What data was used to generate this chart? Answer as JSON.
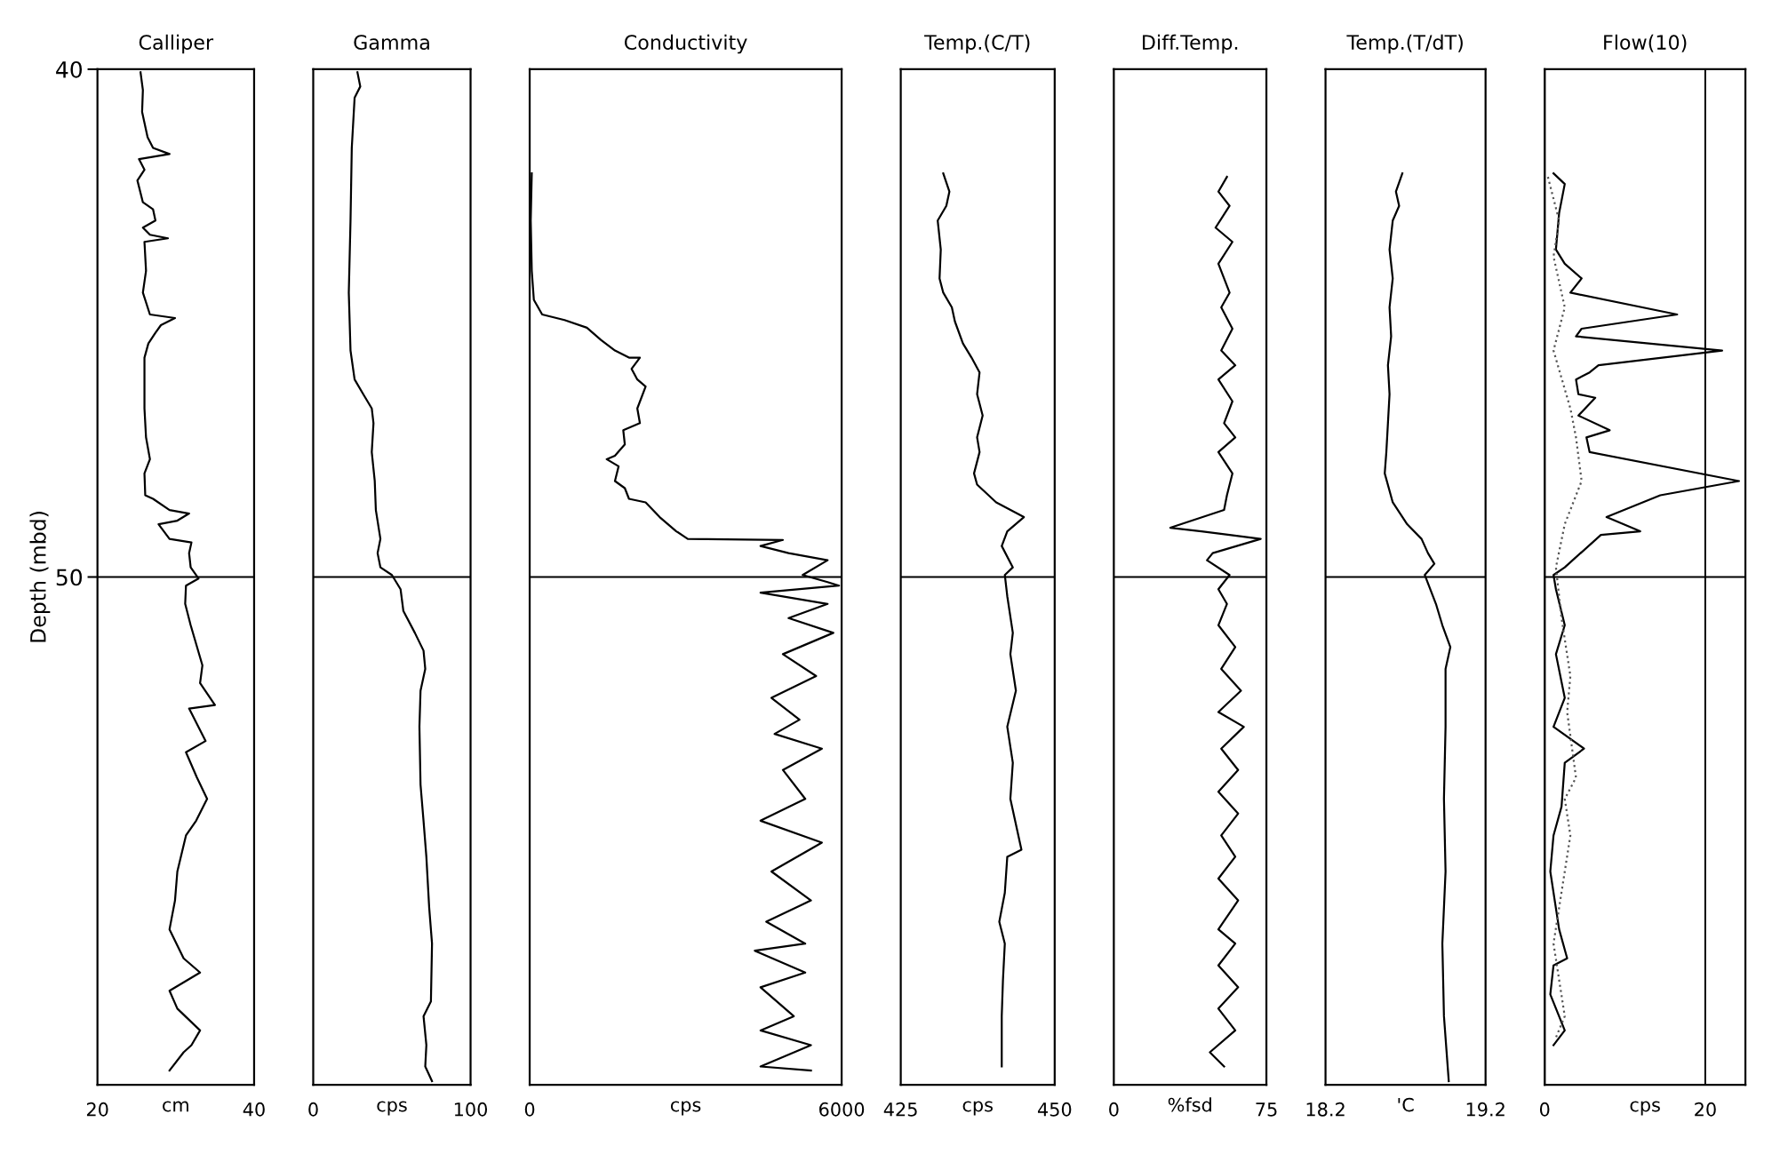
{
  "chart_data": [
    {
      "type": "line",
      "title": "Calliper",
      "xlabel": "cm",
      "ylabel": "Depth (mbd)",
      "xlim": [
        20,
        40
      ],
      "xticks": [
        20,
        40
      ],
      "ylim": [
        60,
        40
      ],
      "yticks": [
        40,
        50
      ],
      "grid": "y",
      "series": [
        {
          "color": "#000000",
          "x": [
            25.5,
            25.8,
            25.7,
            26.4,
            27.1,
            29.2,
            25.3,
            26.0,
            25.1,
            25.8,
            27.1,
            27.4,
            25.8,
            26.7,
            29.0,
            26.0,
            26.2,
            25.8,
            26.7,
            29.9,
            28.1,
            27.4,
            27.1,
            26.5,
            26.0,
            26.0,
            26.0,
            26.2,
            26.7,
            26.0,
            26.1,
            27.1,
            29.2,
            31.7,
            30.2,
            27.8,
            29.2,
            32.0,
            31.7,
            31.9,
            32.9,
            31.3,
            31.2,
            31.9,
            33.4,
            33.1,
            35.0,
            31.7,
            33.8,
            31.3,
            32.7,
            34.0,
            32.6,
            31.3,
            30.2,
            29.9,
            29.2,
            31.0,
            33.1,
            29.2,
            30.2,
            33.1,
            32.0,
            31.0,
            29.2
          ],
          "values": [
            40.06,
            40.41,
            40.84,
            41.34,
            41.55,
            41.67,
            41.77,
            41.98,
            42.19,
            42.62,
            42.76,
            42.98,
            43.12,
            43.26,
            43.33,
            43.4,
            43.97,
            44.4,
            44.83,
            44.9,
            45.04,
            45.19,
            45.26,
            45.4,
            45.68,
            46.11,
            46.68,
            47.25,
            47.68,
            47.96,
            48.39,
            48.46,
            48.68,
            48.75,
            48.89,
            48.96,
            49.25,
            49.32,
            49.53,
            49.81,
            50.03,
            50.17,
            50.53,
            50.95,
            51.74,
            52.09,
            52.52,
            52.59,
            53.23,
            53.45,
            53.95,
            54.37,
            54.8,
            55.09,
            55.8,
            56.37,
            56.94,
            57.51,
            57.79,
            58.15,
            58.5,
            58.93,
            59.22,
            59.36,
            59.72
          ]
        }
      ]
    },
    {
      "type": "line",
      "title": "Gamma",
      "xlabel": "cps",
      "xlim": [
        0,
        100
      ],
      "xticks": [
        0,
        100
      ],
      "ylim": [
        60,
        40
      ],
      "yticks": [
        40,
        50
      ],
      "grid": "y",
      "tick_labels": "x",
      "series": [
        {
          "color": "#000000",
          "x": [
            28.1,
            29.9,
            26.3,
            24.5,
            23.7,
            22.6,
            23.7,
            26.3,
            31.8,
            37.2,
            38.3,
            37.2,
            39.1,
            39.8,
            42.7,
            40.9,
            42.7,
            50.0,
            55.5,
            57.3,
            64.6,
            70.1,
            71.2,
            68.2,
            67.5,
            68.2,
            70.1,
            71.9,
            73.7,
            75.5,
            74.8,
            70.1,
            71.9,
            71.2,
            75.5
          ],
          "values": [
            40.06,
            40.34,
            40.56,
            41.55,
            42.98,
            44.4,
            45.54,
            46.11,
            46.4,
            46.68,
            46.97,
            47.54,
            48.11,
            48.68,
            49.25,
            49.53,
            49.81,
            49.96,
            50.24,
            50.67,
            51.1,
            51.45,
            51.81,
            52.24,
            52.95,
            54.09,
            54.8,
            55.51,
            56.51,
            57.22,
            58.36,
            58.65,
            59.22,
            59.64,
            59.93
          ]
        }
      ]
    },
    {
      "type": "line",
      "title": "Conductivity",
      "xlabel": "cps",
      "xlim": [
        0,
        6000
      ],
      "xticks": [
        0,
        6000
      ],
      "ylim": [
        60,
        40
      ],
      "yticks": [
        40,
        50
      ],
      "grid": "y",
      "tick_labels": "x",
      "series": [
        {
          "color": "#000000",
          "x": [
            40,
            20,
            40,
            80,
            240,
            670,
            1100,
            1370,
            1640,
            1910,
            2120,
            1960,
            2070,
            2230,
            2070,
            2120,
            1800,
            1830,
            1640,
            1480,
            1710,
            1640,
            1830,
            1910,
            2230,
            2500,
            2820,
            3040,
            4870,
            4440,
            4980,
            5730,
            5250,
            5730,
            5950,
            4440,
            5730,
            4980,
            5840,
            4870,
            5510,
            4650,
            5190,
            4710,
            5620,
            4870,
            5300,
            4440,
            5620,
            4650,
            5410,
            4550,
            5300,
            4330,
            5300,
            4440,
            5080,
            4440,
            5410,
            4440,
            5410
          ],
          "values": [
            42.05,
            42.98,
            43.97,
            44.54,
            44.83,
            44.94,
            45.09,
            45.33,
            45.54,
            45.68,
            45.68,
            45.9,
            46.11,
            46.25,
            46.68,
            46.97,
            47.11,
            47.39,
            47.61,
            47.68,
            47.82,
            48.11,
            48.25,
            48.46,
            48.53,
            48.82,
            49.1,
            49.25,
            49.27,
            49.39,
            49.53,
            49.67,
            49.96,
            50.1,
            50.17,
            50.31,
            50.53,
            50.81,
            51.1,
            51.52,
            51.95,
            52.38,
            52.81,
            53.09,
            53.38,
            53.8,
            54.37,
            54.8,
            55.23,
            55.8,
            56.37,
            56.79,
            57.22,
            57.36,
            57.79,
            58.08,
            58.65,
            58.93,
            59.22,
            59.64,
            59.72
          ]
        }
      ]
    },
    {
      "type": "line",
      "title": "Temp.(C/T)",
      "xlabel": "cps",
      "xlim": [
        425,
        450
      ],
      "xticks": [
        425,
        450
      ],
      "ylim": [
        60,
        40
      ],
      "yticks": [
        40,
        50
      ],
      "grid": "y",
      "tick_labels": "x",
      "series": [
        {
          "color": "#000000",
          "x": [
            431.9,
            432.9,
            432.4,
            431.0,
            431.5,
            431.3,
            431.9,
            433.3,
            433.8,
            435.1,
            436.5,
            437.8,
            437.4,
            438.3,
            437.4,
            437.8,
            436.9,
            437.4,
            440.5,
            445.0,
            442.3,
            441.4,
            443.2,
            441.9,
            442.3,
            443.2,
            442.8,
            443.7,
            442.3,
            443.2,
            442.8,
            444.6,
            442.3,
            441.9,
            441.0,
            441.9,
            441.6,
            441.4,
            441.4
          ],
          "values": [
            42.05,
            42.41,
            42.69,
            42.98,
            43.55,
            44.12,
            44.4,
            44.69,
            44.97,
            45.4,
            45.68,
            45.97,
            46.4,
            46.82,
            47.25,
            47.54,
            47.96,
            48.18,
            48.53,
            48.82,
            49.1,
            49.39,
            49.81,
            49.96,
            50.38,
            51.1,
            51.52,
            52.24,
            52.95,
            53.66,
            54.37,
            55.37,
            55.51,
            56.22,
            56.79,
            57.22,
            57.93,
            58.65,
            59.64
          ]
        }
      ]
    },
    {
      "type": "line",
      "title": "Diff.Temp.",
      "xlabel": "%fsd",
      "xlim": [
        0,
        75
      ],
      "xticks": [
        0,
        75
      ],
      "ylim": [
        60,
        40
      ],
      "yticks": [
        40,
        50
      ],
      "grid": "y",
      "tick_labels": "x",
      "series": [
        {
          "color": "#000000",
          "x": [
            55.6,
            51.4,
            56.9,
            50.0,
            58.3,
            51.4,
            56.9,
            52.8,
            58.3,
            52.8,
            59.7,
            51.4,
            58.3,
            54.2,
            59.7,
            51.4,
            58.3,
            55.6,
            54.2,
            27.8,
            43.1,
            56.9,
            72.2,
            48.6,
            45.8,
            56.9,
            51.4,
            55.6,
            51.4,
            59.7,
            52.8,
            62.5,
            51.4,
            63.9,
            52.8,
            61.1,
            51.4,
            61.1,
            52.8,
            59.7,
            51.4,
            61.1,
            51.4,
            59.7,
            51.4,
            61.1,
            51.4,
            59.7,
            47.2,
            54.2
          ],
          "values": [
            42.12,
            42.41,
            42.69,
            43.12,
            43.4,
            43.83,
            44.4,
            44.69,
            45.11,
            45.54,
            45.83,
            46.11,
            46.54,
            46.97,
            47.25,
            47.54,
            47.96,
            48.39,
            48.68,
            49.03,
            49.1,
            49.17,
            49.25,
            49.53,
            49.67,
            49.96,
            50.24,
            50.53,
            50.95,
            51.38,
            51.81,
            52.24,
            52.66,
            52.95,
            53.38,
            53.8,
            54.23,
            54.66,
            55.09,
            55.51,
            55.94,
            56.37,
            56.94,
            57.22,
            57.65,
            58.08,
            58.5,
            58.93,
            59.36,
            59.64
          ]
        }
      ]
    },
    {
      "type": "line",
      "title": "Temp.(T/dT)",
      "xlabel": "'C",
      "xlim": [
        18.2,
        19.2
      ],
      "xticks": [
        18.2,
        19.2
      ],
      "ylim": [
        60,
        40
      ],
      "yticks": [
        40,
        50
      ],
      "grid": "y",
      "tick_labels": "x",
      "series": [
        {
          "color": "#000000",
          "x": [
            18.68,
            18.64,
            18.66,
            18.62,
            18.6,
            18.62,
            18.6,
            18.61,
            18.59,
            18.6,
            18.59,
            18.58,
            18.57,
            18.62,
            18.71,
            18.8,
            18.84,
            18.88,
            18.82,
            18.89,
            18.93,
            18.98,
            18.95,
            18.95,
            18.94,
            18.95,
            18.93,
            18.94,
            18.97
          ],
          "values": [
            42.05,
            42.41,
            42.69,
            42.98,
            43.55,
            44.12,
            44.69,
            45.26,
            45.83,
            46.4,
            46.97,
            47.54,
            47.96,
            48.53,
            48.96,
            49.25,
            49.53,
            49.74,
            49.96,
            50.53,
            50.95,
            51.38,
            51.81,
            52.95,
            54.37,
            55.8,
            57.22,
            58.65,
            59.93
          ]
        }
      ]
    },
    {
      "type": "line",
      "title": "Flow(10)",
      "xlabel": "cps",
      "xlim": [
        0,
        25
      ],
      "xticks": [
        0,
        20
      ],
      "ylim": [
        60,
        40
      ],
      "yticks": [
        40,
        50
      ],
      "grid": true,
      "tick_labels": "x",
      "series": [
        {
          "color": "#000000",
          "line_style": "solid",
          "x": [
            1.1,
            2.5,
            1.8,
            1.4,
            2.5,
            4.6,
            3.2,
            16.5,
            4.6,
            3.9,
            22.1,
            6.7,
            5.6,
            3.9,
            4.2,
            6.3,
            4.2,
            8.1,
            5.2,
            5.6,
            24.2,
            14.4,
            7.7,
            11.9,
            7.0,
            2.5,
            1.1,
            1.4,
            2.5,
            1.4,
            2.5,
            1.1,
            4.9,
            2.5,
            2.1,
            1.1,
            0.7,
            1.8,
            2.8,
            1.1,
            0.7,
            2.5,
            1.1
          ],
          "values": [
            42.05,
            42.26,
            42.83,
            43.55,
            43.83,
            44.12,
            44.4,
            44.83,
            45.11,
            45.26,
            45.54,
            45.83,
            45.97,
            46.11,
            46.4,
            46.47,
            46.82,
            47.11,
            47.25,
            47.54,
            48.11,
            48.39,
            48.82,
            49.1,
            49.17,
            49.81,
            49.96,
            50.24,
            50.95,
            51.52,
            52.38,
            52.95,
            53.38,
            53.66,
            54.52,
            55.09,
            55.8,
            56.94,
            57.51,
            57.65,
            58.22,
            58.93,
            59.22
          ]
        },
        {
          "color": "#555555",
          "line_style": "dotted",
          "x": [
            0.4,
            1.8,
            1.1,
            2.5,
            1.1,
            3.2,
            3.9,
            4.6,
            2.5,
            1.4,
            2.1,
            3.2,
            2.8,
            3.9,
            2.5,
            3.2,
            1.8,
            1.1,
            2.5,
            1.4
          ],
          "values": [
            42.12,
            42.98,
            43.69,
            44.69,
            45.54,
            46.68,
            47.25,
            48.11,
            48.96,
            49.81,
            50.81,
            51.95,
            52.66,
            53.95,
            54.37,
            55.09,
            56.51,
            57.22,
            58.65,
            59.07
          ]
        }
      ]
    }
  ]
}
